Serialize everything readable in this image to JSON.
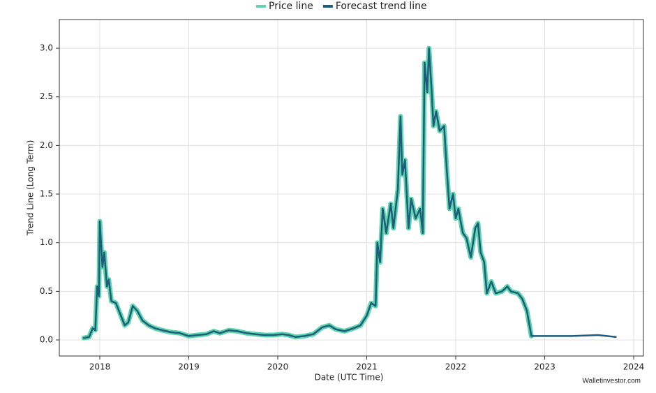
{
  "chart_data": {
    "type": "line",
    "x_label": "Date (UTC Time)",
    "y_label": "Trend Line (Long Term)",
    "watermark": "Walletinvestor.com",
    "x": [
      2017.82,
      2017.88,
      2017.92,
      2017.95,
      2017.97,
      2017.99,
      2018.0,
      2018.03,
      2018.05,
      2018.08,
      2018.1,
      2018.13,
      2018.18,
      2018.25,
      2018.28,
      2018.32,
      2018.37,
      2018.42,
      2018.48,
      2018.55,
      2018.62,
      2018.7,
      2018.8,
      2018.9,
      2019.0,
      2019.1,
      2019.2,
      2019.28,
      2019.35,
      2019.45,
      2019.55,
      2019.65,
      2019.75,
      2019.85,
      2019.95,
      2020.05,
      2020.12,
      2020.2,
      2020.3,
      2020.4,
      2020.5,
      2020.58,
      2020.65,
      2020.75,
      2020.85,
      2020.93,
      2021.0,
      2021.05,
      2021.1,
      2021.12,
      2021.15,
      2021.18,
      2021.22,
      2021.27,
      2021.3,
      2021.35,
      2021.38,
      2021.4,
      2021.43,
      2021.47,
      2021.5,
      2021.55,
      2021.6,
      2021.63,
      2021.65,
      2021.68,
      2021.7,
      2021.73,
      2021.75,
      2021.78,
      2021.82,
      2021.87,
      2021.9,
      2021.93,
      2021.97,
      2022.0,
      2022.03,
      2022.08,
      2022.12,
      2022.17,
      2022.22,
      2022.25,
      2022.28,
      2022.32,
      2022.35,
      2022.4,
      2022.45,
      2022.52,
      2022.58,
      2022.62,
      2022.7,
      2022.75,
      2022.8,
      2022.85,
      2023.0,
      2023.3,
      2023.6,
      2023.8
    ],
    "series": [
      {
        "name": "Price line",
        "color": "#5dd6ae",
        "values": [
          0.02,
          0.03,
          0.12,
          0.1,
          0.55,
          0.45,
          1.22,
          0.75,
          0.9,
          0.55,
          0.62,
          0.4,
          0.38,
          0.22,
          0.15,
          0.18,
          0.35,
          0.3,
          0.2,
          0.15,
          0.12,
          0.1,
          0.08,
          0.07,
          0.04,
          0.05,
          0.06,
          0.09,
          0.07,
          0.1,
          0.09,
          0.07,
          0.06,
          0.05,
          0.05,
          0.06,
          0.05,
          0.03,
          0.04,
          0.06,
          0.13,
          0.15,
          0.11,
          0.09,
          0.12,
          0.15,
          0.25,
          0.38,
          0.35,
          1.0,
          0.8,
          1.35,
          1.1,
          1.4,
          1.15,
          1.55,
          2.3,
          1.7,
          1.85,
          1.15,
          1.45,
          1.25,
          1.35,
          1.1,
          2.85,
          2.55,
          3.0,
          2.55,
          2.2,
          2.35,
          2.15,
          2.2,
          1.75,
          1.35,
          1.5,
          1.25,
          1.35,
          1.1,
          1.05,
          0.85,
          1.15,
          1.2,
          0.9,
          0.8,
          0.48,
          0.6,
          0.48,
          0.5,
          0.55,
          0.5,
          0.48,
          0.42,
          0.3,
          0.04,
          null,
          null,
          null,
          null
        ]
      },
      {
        "name": "Forecast trend line",
        "color": "#1f5b7a",
        "values": [
          0.02,
          0.03,
          0.12,
          0.1,
          0.55,
          0.45,
          1.22,
          0.75,
          0.9,
          0.55,
          0.62,
          0.4,
          0.38,
          0.22,
          0.15,
          0.18,
          0.35,
          0.3,
          0.2,
          0.15,
          0.12,
          0.1,
          0.08,
          0.07,
          0.04,
          0.05,
          0.06,
          0.09,
          0.07,
          0.1,
          0.09,
          0.07,
          0.06,
          0.05,
          0.05,
          0.06,
          0.05,
          0.03,
          0.04,
          0.06,
          0.13,
          0.15,
          0.11,
          0.09,
          0.12,
          0.15,
          0.25,
          0.38,
          0.35,
          1.0,
          0.8,
          1.35,
          1.1,
          1.4,
          1.15,
          1.55,
          2.3,
          1.7,
          1.85,
          1.15,
          1.45,
          1.25,
          1.35,
          1.1,
          2.85,
          2.55,
          3.0,
          2.55,
          2.2,
          2.35,
          2.15,
          2.2,
          1.75,
          1.35,
          1.5,
          1.25,
          1.35,
          1.1,
          1.05,
          0.85,
          1.15,
          1.2,
          0.9,
          0.8,
          0.48,
          0.6,
          0.48,
          0.5,
          0.55,
          0.5,
          0.48,
          0.42,
          0.3,
          0.04,
          0.04,
          0.04,
          0.05,
          0.03
        ]
      }
    ],
    "xlim": [
      2017.545,
      2024.11
    ],
    "xticks": [
      2018,
      2019,
      2020,
      2021,
      2022,
      2023,
      2024
    ],
    "ylim": [
      -0.165,
      3.295
    ],
    "yticks": [
      {
        "value": 0,
        "label": "0.0"
      },
      0.5,
      {
        "value": 1,
        "label": "1.0"
      },
      1.5,
      {
        "value": 2,
        "label": "2.0"
      },
      2.5,
      {
        "value": 3,
        "label": "3.0"
      }
    ],
    "grid": true,
    "legend": "top"
  }
}
